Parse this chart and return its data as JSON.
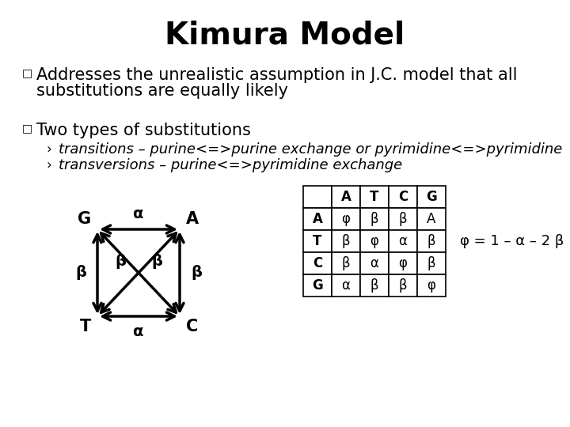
{
  "title": "Kimura Model",
  "bullet1_line1": "Addresses the unrealistic assumption in J.C. model that all",
  "bullet1_line2": "substitutions are equally likely",
  "bullet2": "Two types of substitutions",
  "sub1": "transitions – purine<=>purine exchange or pyrimidine<=>pyrimidine",
  "sub2": "transversions – purine<=>pyrimidine exchange",
  "phi_eq": "φ = 1 – α – 2 β",
  "bg_color": "#ffffff",
  "text_color": "#000000",
  "title_fontsize": 28,
  "body_fontsize": 15,
  "sub_fontsize": 13
}
